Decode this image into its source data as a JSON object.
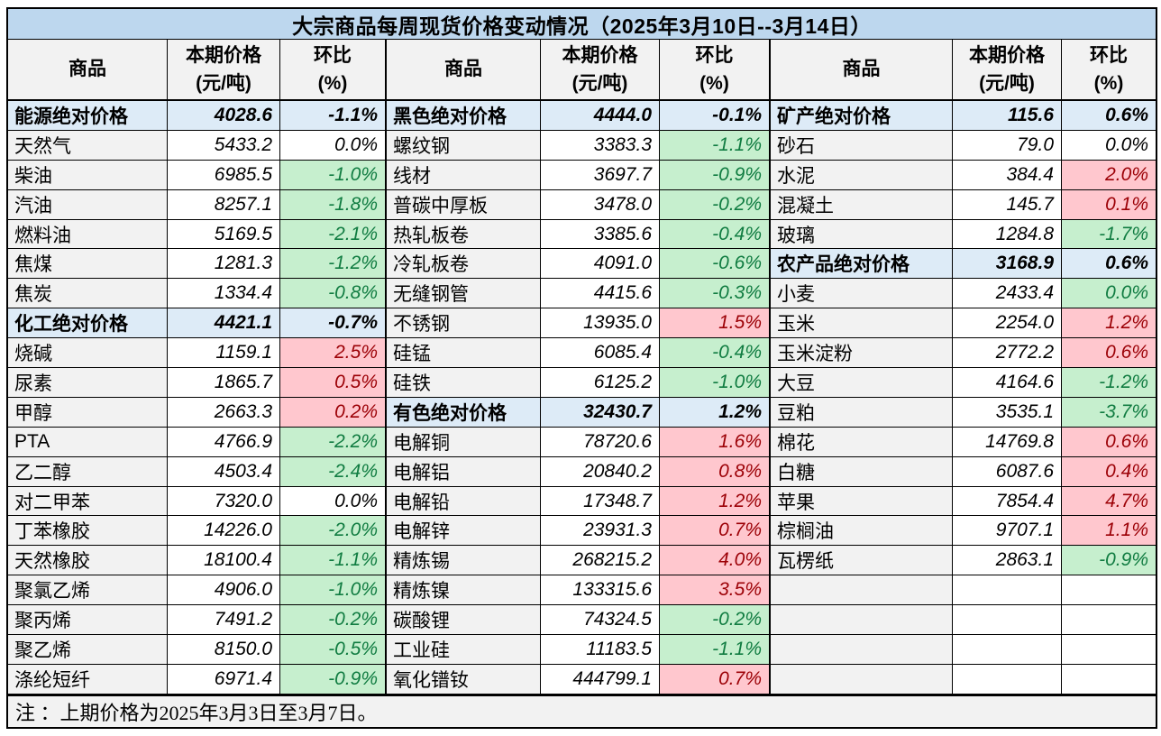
{
  "title": "大宗商品每周现货价格变动情况（2025年3月10日--3月14日）",
  "note": "注 ：上期价格为2025年3月3日至3月7日。",
  "columns": {
    "commodity": "商品",
    "price": "本期价格\n(元/吨)",
    "change": "环比\n(%)"
  },
  "colors": {
    "title_bg": "#BDD7EE",
    "header_bg": "#F2F2F2",
    "section_bg": "#DDEBF7",
    "name_bg": "#F2F2F2",
    "note_bg": "#F2F2F2",
    "up_bg": "#FFC7CE",
    "up_text": "#9C0006",
    "down_bg": "#C6EFCE",
    "down_text": "#107C41",
    "border": "#000000"
  },
  "rows": [
    [
      {
        "name": "能源绝对价格",
        "price": "4028.6",
        "chg": "-1.1%",
        "kind": "section",
        "dir": "down"
      },
      {
        "name": "黑色绝对价格",
        "price": "4444.0",
        "chg": "-0.1%",
        "kind": "section",
        "dir": "down"
      },
      {
        "name": "矿产绝对价格",
        "price": "115.6",
        "chg": "0.6%",
        "kind": "section",
        "dir": "up"
      }
    ],
    [
      {
        "name": "天然气",
        "price": "5433.2",
        "chg": "0.0%",
        "dir": "flat"
      },
      {
        "name": "螺纹钢",
        "price": "3383.3",
        "chg": "-1.1%",
        "dir": "down"
      },
      {
        "name": "砂石",
        "price": "79.0",
        "chg": "0.0%",
        "dir": "flat"
      }
    ],
    [
      {
        "name": "柴油",
        "price": "6985.5",
        "chg": "-1.0%",
        "dir": "down"
      },
      {
        "name": "线材",
        "price": "3697.7",
        "chg": "-0.9%",
        "dir": "down"
      },
      {
        "name": "水泥",
        "price": "384.4",
        "chg": "2.0%",
        "dir": "up"
      }
    ],
    [
      {
        "name": "汽油",
        "price": "8257.1",
        "chg": "-1.8%",
        "dir": "down"
      },
      {
        "name": "普碳中厚板",
        "price": "3478.0",
        "chg": "-0.2%",
        "dir": "down"
      },
      {
        "name": "混凝土",
        "price": "145.7",
        "chg": "0.1%",
        "dir": "up"
      }
    ],
    [
      {
        "name": "燃料油",
        "price": "5169.5",
        "chg": "-2.1%",
        "dir": "down"
      },
      {
        "name": "热轧板卷",
        "price": "3385.6",
        "chg": "-0.4%",
        "dir": "down"
      },
      {
        "name": "玻璃",
        "price": "1284.8",
        "chg": "-1.7%",
        "dir": "down"
      }
    ],
    [
      {
        "name": "焦煤",
        "price": "1281.3",
        "chg": "-1.2%",
        "dir": "down"
      },
      {
        "name": "冷轧板卷",
        "price": "4091.0",
        "chg": "-0.6%",
        "dir": "down"
      },
      {
        "name": "农产品绝对价格",
        "price": "3168.9",
        "chg": "0.6%",
        "kind": "section",
        "dir": "up"
      }
    ],
    [
      {
        "name": "焦炭",
        "price": "1334.4",
        "chg": "-0.8%",
        "dir": "down"
      },
      {
        "name": "无缝钢管",
        "price": "4415.6",
        "chg": "-0.3%",
        "dir": "down"
      },
      {
        "name": "小麦",
        "price": "2433.4",
        "chg": "0.0%",
        "dir": "down"
      }
    ],
    [
      {
        "name": "化工绝对价格",
        "price": "4421.1",
        "chg": "-0.7%",
        "kind": "section",
        "dir": "down"
      },
      {
        "name": "不锈钢",
        "price": "13935.0",
        "chg": "1.5%",
        "dir": "up"
      },
      {
        "name": "玉米",
        "price": "2254.0",
        "chg": "1.2%",
        "dir": "up"
      }
    ],
    [
      {
        "name": "烧碱",
        "price": "1159.1",
        "chg": "2.5%",
        "dir": "up"
      },
      {
        "name": "硅锰",
        "price": "6085.4",
        "chg": "-0.4%",
        "dir": "down"
      },
      {
        "name": "玉米淀粉",
        "price": "2772.2",
        "chg": "0.6%",
        "dir": "up"
      }
    ],
    [
      {
        "name": "尿素",
        "price": "1865.7",
        "chg": "0.5%",
        "dir": "up"
      },
      {
        "name": "硅铁",
        "price": "6125.2",
        "chg": "-1.0%",
        "dir": "down"
      },
      {
        "name": "大豆",
        "price": "4164.6",
        "chg": "-1.2%",
        "dir": "down"
      }
    ],
    [
      {
        "name": "甲醇",
        "price": "2663.3",
        "chg": "0.2%",
        "dir": "up"
      },
      {
        "name": "有色绝对价格",
        "price": "32430.7",
        "chg": "1.2%",
        "kind": "section",
        "dir": "up"
      },
      {
        "name": "豆粕",
        "price": "3535.1",
        "chg": "-3.7%",
        "dir": "down"
      }
    ],
    [
      {
        "name": "PTA",
        "price": "4766.9",
        "chg": "-2.2%",
        "dir": "down"
      },
      {
        "name": "电解铜",
        "price": "78720.6",
        "chg": "1.6%",
        "dir": "up"
      },
      {
        "name": "棉花",
        "price": "14769.8",
        "chg": "0.6%",
        "dir": "up"
      }
    ],
    [
      {
        "name": "乙二醇",
        "price": "4503.4",
        "chg": "-2.4%",
        "dir": "down"
      },
      {
        "name": "电解铝",
        "price": "20840.2",
        "chg": "0.8%",
        "dir": "up"
      },
      {
        "name": "白糖",
        "price": "6087.6",
        "chg": "0.4%",
        "dir": "up"
      }
    ],
    [
      {
        "name": "对二甲苯",
        "price": "7320.0",
        "chg": "0.0%",
        "dir": "flat"
      },
      {
        "name": "电解铅",
        "price": "17348.7",
        "chg": "1.2%",
        "dir": "up"
      },
      {
        "name": "苹果",
        "price": "7854.4",
        "chg": "4.7%",
        "dir": "up"
      }
    ],
    [
      {
        "name": "丁苯橡胶",
        "price": "14226.0",
        "chg": "-2.0%",
        "dir": "down"
      },
      {
        "name": "电解锌",
        "price": "23931.3",
        "chg": "0.7%",
        "dir": "up"
      },
      {
        "name": "棕榈油",
        "price": "9707.1",
        "chg": "1.1%",
        "dir": "up"
      }
    ],
    [
      {
        "name": "天然橡胶",
        "price": "18100.4",
        "chg": "-1.1%",
        "dir": "down"
      },
      {
        "name": "精炼锡",
        "price": "268215.2",
        "chg": "4.0%",
        "dir": "up"
      },
      {
        "name": "瓦楞纸",
        "price": "2863.1",
        "chg": "-0.9%",
        "dir": "down"
      }
    ],
    [
      {
        "name": "聚氯乙烯",
        "price": "4906.0",
        "chg": "-1.0%",
        "dir": "down"
      },
      {
        "name": "精炼镍",
        "price": "133315.6",
        "chg": "3.5%",
        "dir": "up"
      },
      {
        "kind": "empty"
      }
    ],
    [
      {
        "name": "聚丙烯",
        "price": "7491.2",
        "chg": "-0.2%",
        "dir": "down"
      },
      {
        "name": "碳酸锂",
        "price": "74324.5",
        "chg": "-0.2%",
        "dir": "down"
      },
      {
        "kind": "empty"
      }
    ],
    [
      {
        "name": "聚乙烯",
        "price": "8150.0",
        "chg": "-0.5%",
        "dir": "down"
      },
      {
        "name": "工业硅",
        "price": "11183.5",
        "chg": "-1.1%",
        "dir": "down"
      },
      {
        "kind": "empty"
      }
    ],
    [
      {
        "name": "涤纶短纤",
        "price": "6971.4",
        "chg": "-0.9%",
        "dir": "down"
      },
      {
        "name": "氧化镨钕",
        "price": "444799.1",
        "chg": "0.7%",
        "dir": "up"
      },
      {
        "kind": "empty"
      }
    ]
  ]
}
